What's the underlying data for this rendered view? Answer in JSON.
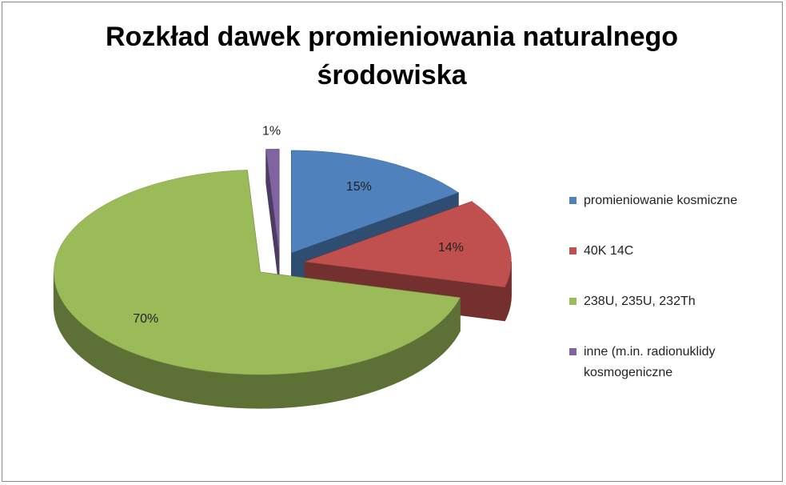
{
  "chart_data": {
    "type": "pie",
    "title": "Rozkład dawek promieniowania naturalnego środowiska",
    "categories": [
      "promieniowanie kosmiczne",
      "40K 14C",
      "238U, 235U, 232Th",
      "inne (m.in. radionuklidy kosmogeniczne"
    ],
    "values": [
      15,
      14,
      70,
      1
    ],
    "value_labels": [
      "15%",
      "14%",
      "70%",
      "1%"
    ],
    "colors": [
      "#4f81bd",
      "#c0504d",
      "#9bbb59",
      "#8064a2"
    ],
    "legend": "right"
  }
}
